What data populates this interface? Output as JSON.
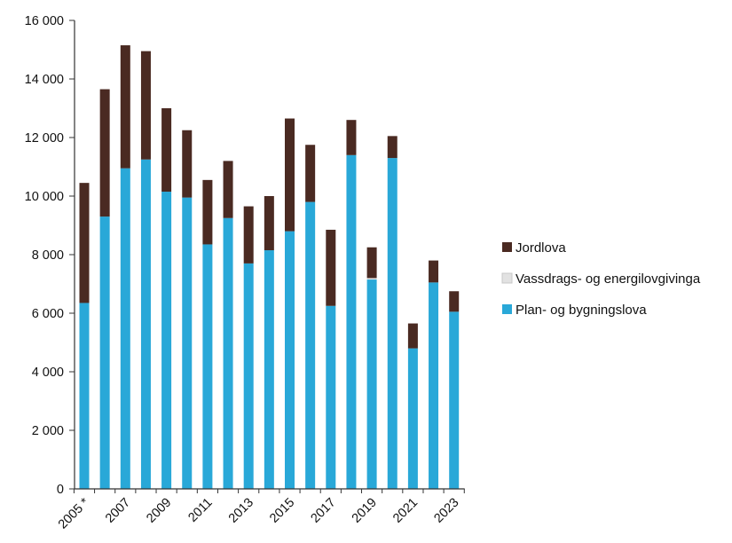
{
  "chart_data": {
    "type": "bar",
    "stacked": true,
    "categories": [
      "2005 *",
      "2006",
      "2007",
      "2008",
      "2009",
      "2010",
      "2011",
      "2012",
      "2013",
      "2014",
      "2015",
      "2016",
      "2017",
      "2018",
      "2019",
      "2020",
      "2021",
      "2022",
      "2023"
    ],
    "x_tick_labels": [
      "2005 *",
      "2007",
      "2009",
      "2011",
      "2013",
      "2015",
      "2017",
      "2019",
      "2021",
      "2023"
    ],
    "series": [
      {
        "name": "Plan- og bygningslova",
        "color": "#29a8d8",
        "values": [
          6350,
          9300,
          10950,
          11250,
          10150,
          9950,
          8350,
          9250,
          7700,
          8150,
          8800,
          9800,
          6250,
          11400,
          7150,
          11300,
          4800,
          7050,
          6050
        ]
      },
      {
        "name": "Vassdrags- og energilovgivinga",
        "color": "#e2e2e2",
        "values": [
          0,
          0,
          0,
          0,
          0,
          0,
          0,
          0,
          0,
          0,
          0,
          0,
          0,
          0,
          50,
          0,
          0,
          0,
          0
        ]
      },
      {
        "name": "Jordlova",
        "color": "#4a2a22",
        "values": [
          4100,
          4350,
          4200,
          3700,
          2850,
          2300,
          2200,
          1950,
          1950,
          1850,
          3850,
          1950,
          2600,
          1200,
          1050,
          750,
          850,
          750,
          700
        ]
      }
    ],
    "y_ticks": [
      "0",
      "2 000",
      "4 000",
      "6 000",
      "8 000",
      "10 000",
      "12 000",
      "14 000",
      "16 000"
    ],
    "ylim": [
      0,
      16000
    ],
    "grid": false,
    "legend_position": "right",
    "legend_entries": [
      "Jordlova",
      "Vassdrags- og energilovgivinga",
      "Plan- og bygningslova"
    ]
  }
}
